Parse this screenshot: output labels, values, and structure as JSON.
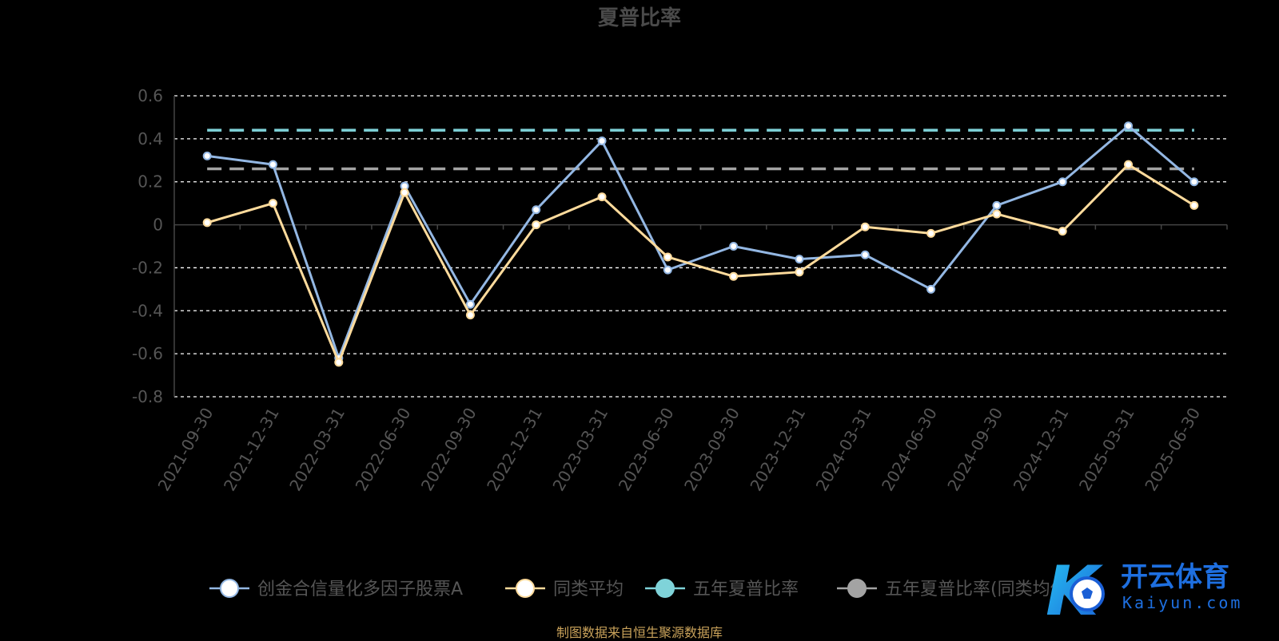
{
  "chart_data": {
    "type": "line",
    "title": "夏普比率",
    "categories": [
      "2021-09-30",
      "2021-12-31",
      "2022-03-31",
      "2022-06-30",
      "2022-09-30",
      "2022-12-31",
      "2023-03-31",
      "2023-06-30",
      "2023-09-30",
      "2023-12-31",
      "2024-03-31",
      "2024-06-30",
      "2024-09-30",
      "2024-12-31",
      "2025-03-31",
      "2025-06-30"
    ],
    "ylim": [
      -0.8,
      0.6
    ],
    "yticks": [
      0.6,
      0.4,
      0.2,
      0,
      -0.2,
      -0.4,
      -0.6,
      -0.8
    ],
    "ytick_labels": [
      "0.6",
      "0.4",
      "0.2",
      "0",
      "-0.2",
      "-0.4",
      "-0.6",
      "-0.8"
    ],
    "grid": true,
    "legend_position": "bottom",
    "series": [
      {
        "name": "创金合信量化多因子股票A",
        "color": "#93b7e3",
        "values": [
          0.32,
          0.28,
          -0.62,
          0.18,
          -0.37,
          0.07,
          0.39,
          -0.21,
          -0.1,
          -0.16,
          -0.14,
          -0.3,
          0.09,
          0.2,
          0.46,
          0.2
        ]
      },
      {
        "name": "同类平均",
        "color": "#ffdb9c",
        "values": [
          0.01,
          0.1,
          -0.64,
          0.15,
          -0.42,
          0.0,
          0.13,
          -0.15,
          -0.24,
          -0.22,
          -0.01,
          -0.04,
          0.05,
          -0.03,
          0.28,
          0.09
        ]
      }
    ],
    "reference_lines": [
      {
        "name": "五年夏普比率",
        "color": "#7fd3d9",
        "value": 0.44
      },
      {
        "name": "五年夏普比率(同类均值)",
        "color": "#a3a3a3",
        "value": 0.26
      }
    ],
    "source_note": "制图数据来自恒生聚源数据库"
  },
  "watermark": {
    "brand_cn": "开云体育",
    "brand_en": "Kaiyun.com",
    "logo_letter": "K"
  }
}
